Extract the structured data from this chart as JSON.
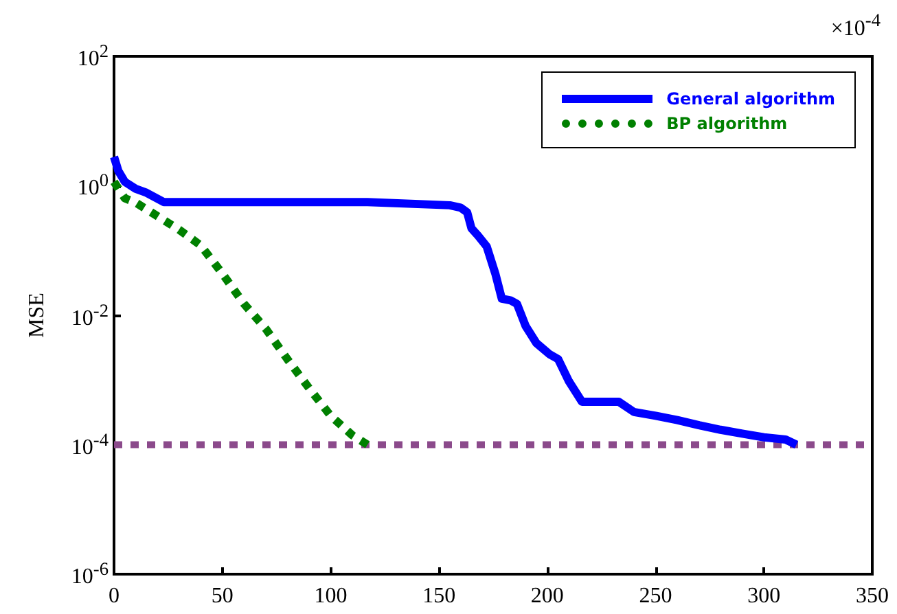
{
  "chart_data": {
    "type": "line",
    "ylabel": "MSE",
    "log": "y",
    "grid": false,
    "legend": "top right",
    "marker": "none",
    "annotations": [
      "×10$^{-4}$"
    ],
    "xlim": [
      0,
      350
    ],
    "xticks": [
      0,
      50,
      100,
      150,
      200,
      250,
      300,
      350
    ],
    "ylim": [
      1e-06,
      100
    ],
    "yticks": [
      {
        "value": 1e-06,
        "label": "10$^{-6}$"
      },
      {
        "value": 0.0001,
        "label": "10$^{-4}$"
      },
      {
        "value": 0.01,
        "label": "10$^{-2}$"
      },
      {
        "value": 1,
        "label": "10$^{0}$"
      },
      {
        "value": 100,
        "label": "10$^{2}$"
      }
    ],
    "ref_lines": [
      {
        "axis": "y",
        "value": 0.0001,
        "label": null,
        "color": "#8b4a8b",
        "line_style": "dotted"
      }
    ],
    "series": [
      {
        "name": "General algorithm",
        "color": "#0000ff",
        "line_style": "solid",
        "x": [
          0,
          2,
          5,
          10,
          15,
          23,
          117,
          155,
          160,
          163,
          165,
          168,
          172,
          176,
          179,
          183,
          186,
          190,
          195,
          201,
          205,
          210,
          216,
          233,
          240,
          250,
          260,
          270,
          280,
          290,
          300,
          310,
          315
        ],
        "values": [
          2.8,
          1.7,
          1.15,
          0.9,
          0.78,
          0.56,
          0.56,
          0.5,
          0.46,
          0.39,
          0.22,
          0.17,
          0.116,
          0.044,
          0.018,
          0.017,
          0.015,
          0.0068,
          0.0037,
          0.0025,
          0.0021,
          0.00095,
          0.00046,
          0.00046,
          0.00032,
          0.00028,
          0.00024,
          0.0002,
          0.00017,
          0.000148,
          0.00013,
          0.00012,
          0.0001
        ]
      },
      {
        "name": "BP algorithm",
        "color": "#008000",
        "line_style": "dotted",
        "x": [
          0,
          5,
          10,
          20,
          30,
          40,
          50,
          60,
          70,
          80,
          90,
          100,
          110,
          117
        ],
        "values": [
          1.15,
          0.64,
          0.55,
          0.34,
          0.21,
          0.12,
          0.044,
          0.015,
          0.0062,
          0.0021,
          0.00075,
          0.00028,
          0.00014,
          0.0001
        ]
      }
    ]
  }
}
